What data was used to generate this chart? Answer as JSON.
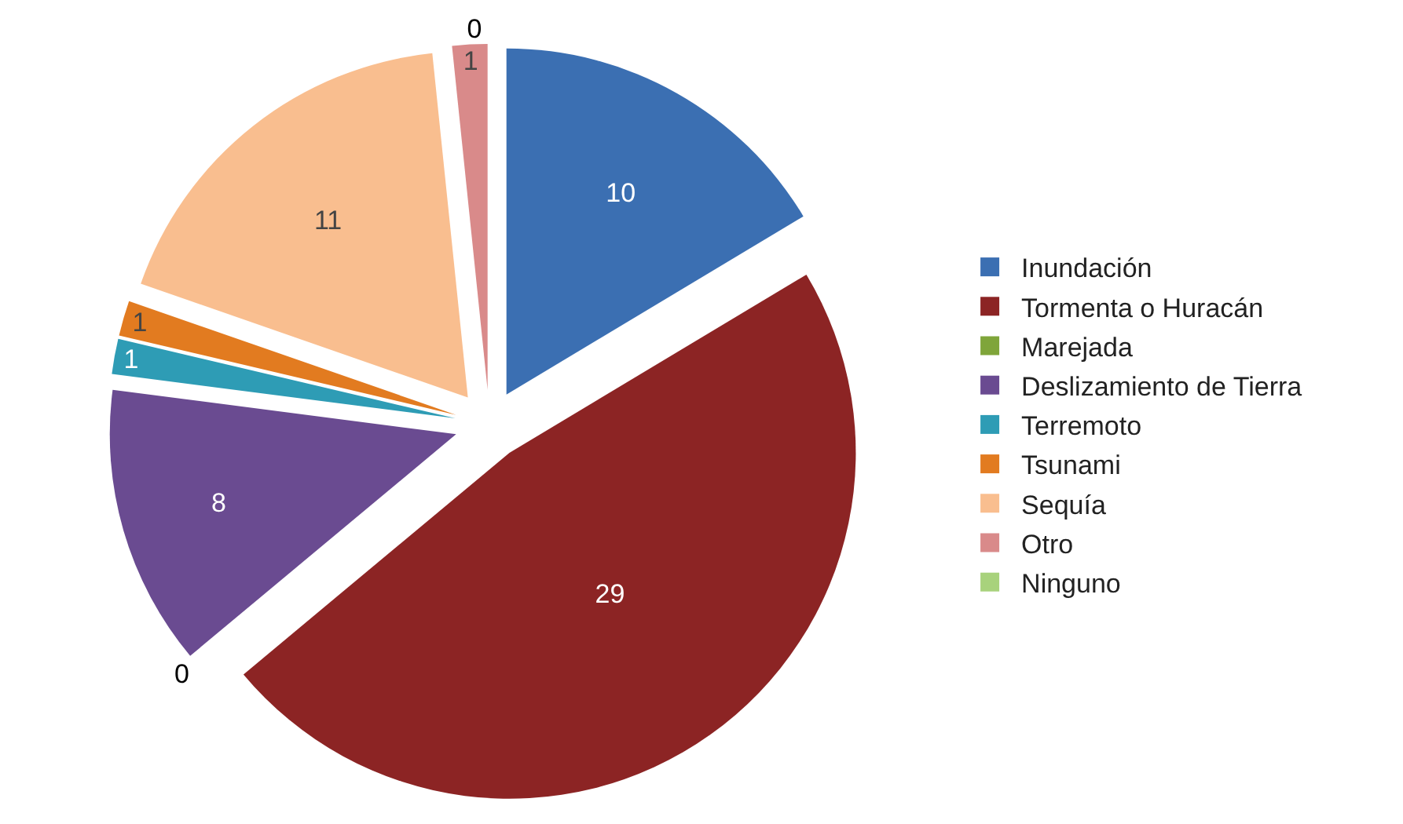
{
  "chart_data": {
    "type": "pie",
    "categories": [
      "Inundación",
      "Tormenta o Huracán",
      "Marejada",
      "Deslizamiento de Tierra",
      "Terremoto",
      "Tsunami",
      "Sequía",
      "Otro",
      "Ninguno"
    ],
    "values": [
      10,
      29,
      0,
      8,
      1,
      1,
      11,
      1,
      0
    ],
    "colors": [
      "#3b6fb2",
      "#8c2424",
      "#7fa53a",
      "#6a4b91",
      "#2e9cb5",
      "#e27b20",
      "#f9be8f",
      "#d98a8a",
      "#a8d27c"
    ],
    "value_labels": [
      "10",
      "29",
      "0",
      "8",
      "1",
      "1",
      "11",
      "1",
      "0"
    ],
    "legend": "right"
  }
}
